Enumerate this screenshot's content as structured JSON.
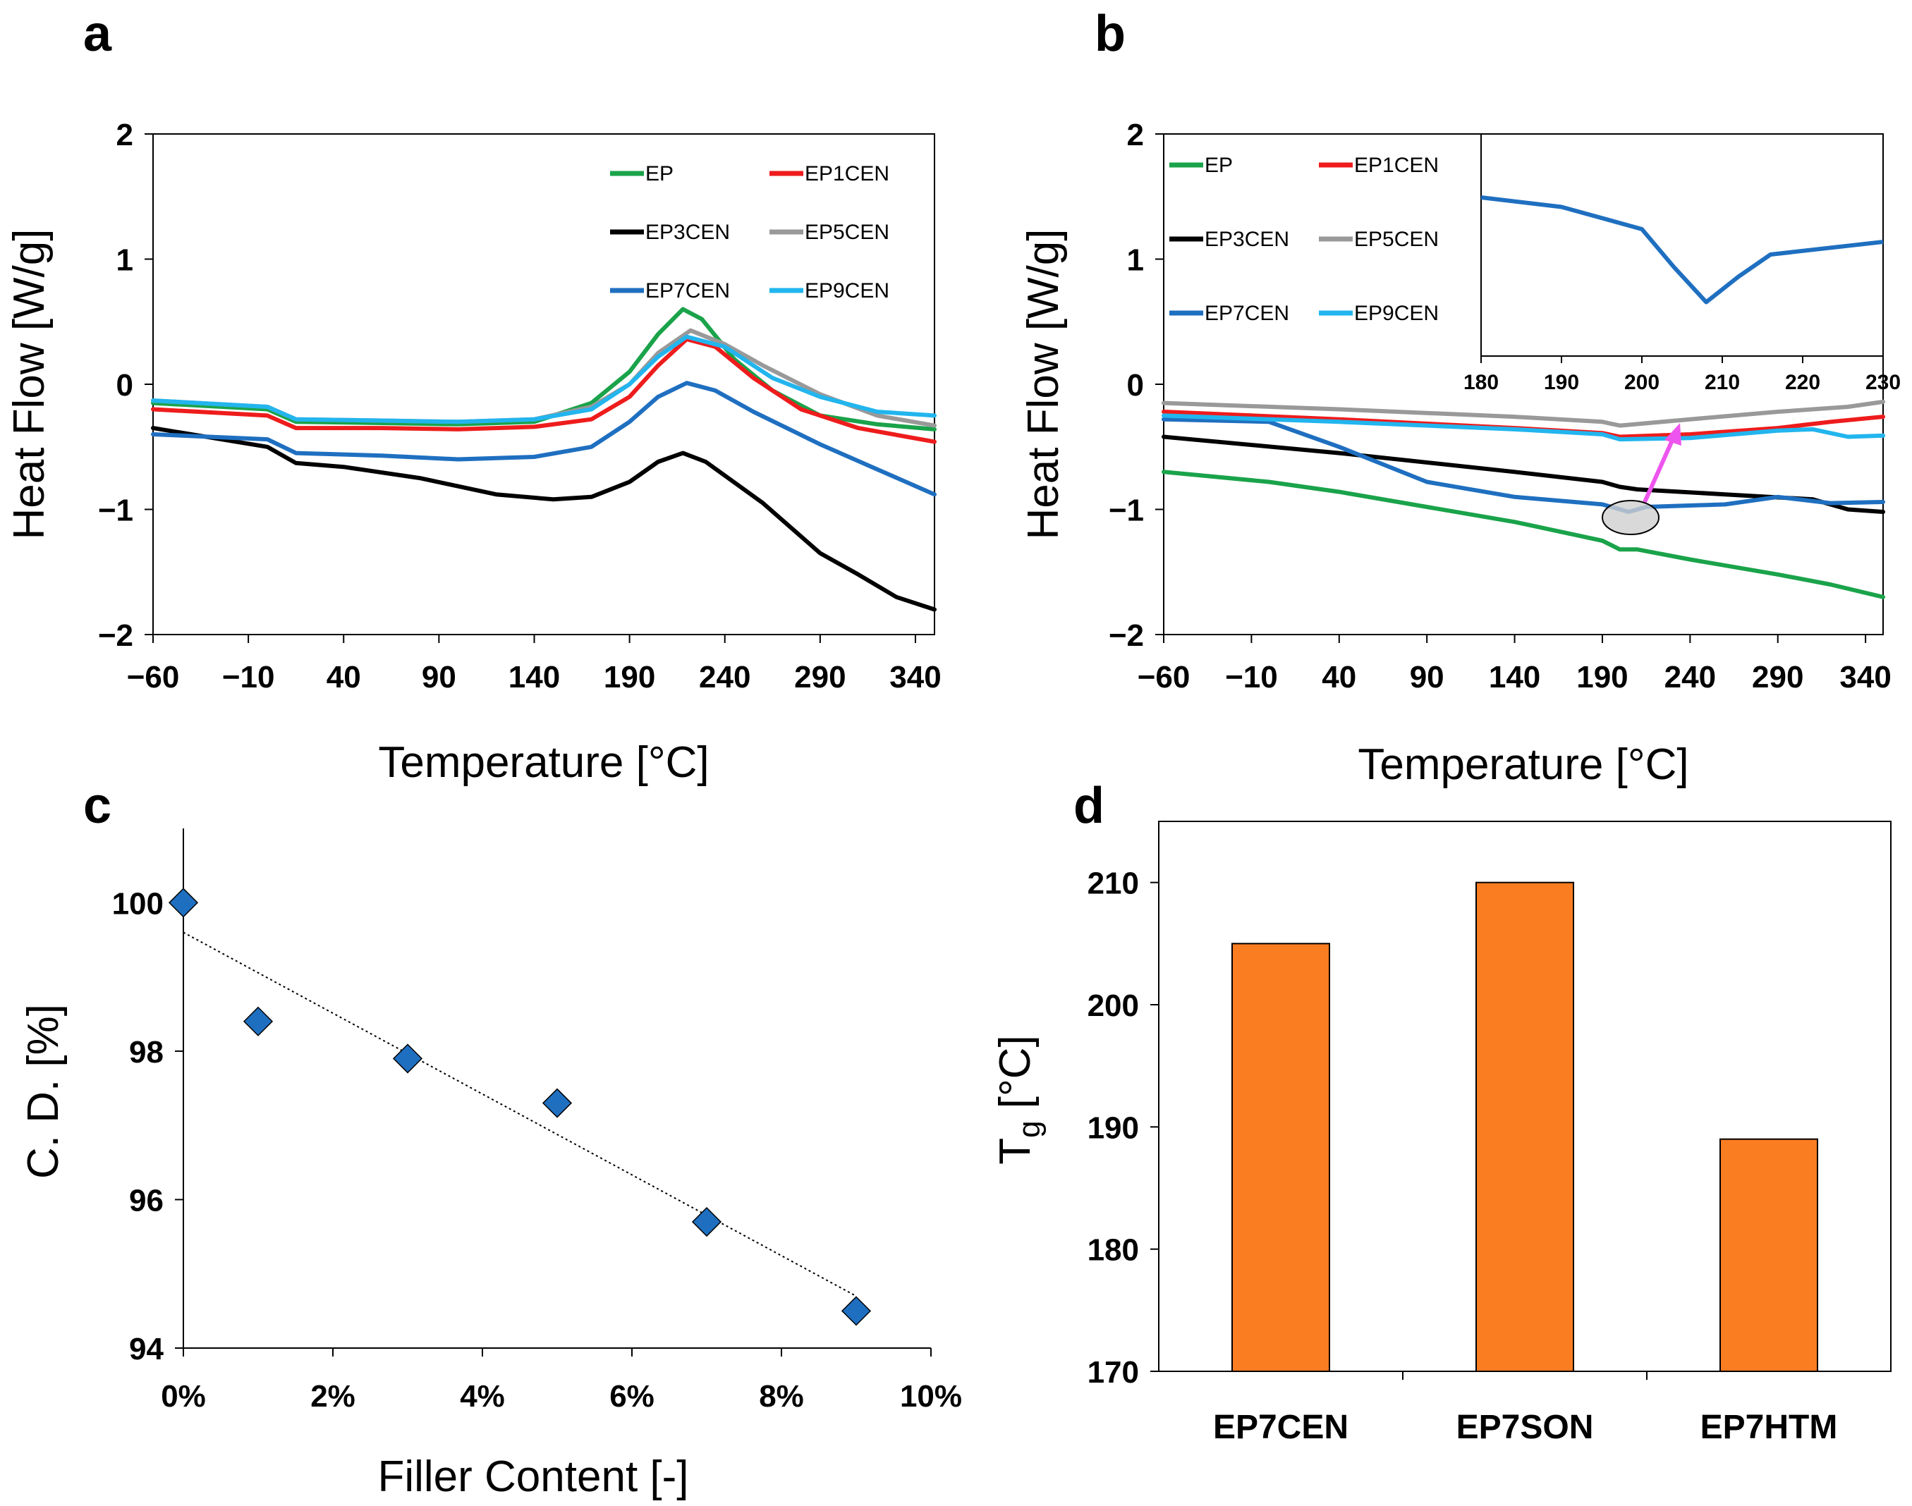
{
  "chart_data": [
    {
      "id": "a",
      "panel_label": "a",
      "type": "line",
      "xlabel": "Temperature [°C]",
      "ylabel": "Heat Flow [W/g]",
      "xlim": [
        -60,
        350
      ],
      "ylim": [
        -2,
        2
      ],
      "xticks": [
        -60,
        -10,
        40,
        90,
        140,
        190,
        240,
        290,
        340
      ],
      "yticks": [
        -2,
        -1,
        0,
        1,
        2
      ],
      "legend_position": "top-right",
      "series": [
        {
          "name": "EP",
          "color": "#1aa34a",
          "points": [
            [
              -60,
              -0.15
            ],
            [
              0,
              -0.2
            ],
            [
              15,
              -0.3
            ],
            [
              60,
              -0.31
            ],
            [
              100,
              -0.32
            ],
            [
              140,
              -0.3
            ],
            [
              170,
              -0.15
            ],
            [
              190,
              0.1
            ],
            [
              205,
              0.4
            ],
            [
              218,
              0.6
            ],
            [
              228,
              0.52
            ],
            [
              245,
              0.2
            ],
            [
              265,
              -0.05
            ],
            [
              290,
              -0.25
            ],
            [
              320,
              -0.32
            ],
            [
              350,
              -0.36
            ]
          ]
        },
        {
          "name": "EP1CEN",
          "color": "#ee1c1c",
          "points": [
            [
              -60,
              -0.2
            ],
            [
              0,
              -0.25
            ],
            [
              15,
              -0.35
            ],
            [
              60,
              -0.35
            ],
            [
              100,
              -0.36
            ],
            [
              140,
              -0.34
            ],
            [
              170,
              -0.28
            ],
            [
              190,
              -0.1
            ],
            [
              205,
              0.15
            ],
            [
              220,
              0.36
            ],
            [
              235,
              0.3
            ],
            [
              255,
              0.05
            ],
            [
              280,
              -0.2
            ],
            [
              310,
              -0.35
            ],
            [
              350,
              -0.46
            ]
          ]
        },
        {
          "name": "EP3CEN",
          "color": "#000000",
          "points": [
            [
              -60,
              -0.35
            ],
            [
              0,
              -0.5
            ],
            [
              15,
              -0.63
            ],
            [
              40,
              -0.66
            ],
            [
              80,
              -0.75
            ],
            [
              120,
              -0.88
            ],
            [
              150,
              -0.92
            ],
            [
              170,
              -0.9
            ],
            [
              190,
              -0.78
            ],
            [
              205,
              -0.62
            ],
            [
              218,
              -0.55
            ],
            [
              230,
              -0.62
            ],
            [
              260,
              -0.95
            ],
            [
              290,
              -1.35
            ],
            [
              310,
              -1.52
            ],
            [
              330,
              -1.7
            ],
            [
              350,
              -1.8
            ]
          ]
        },
        {
          "name": "EP5CEN",
          "color": "#999999",
          "points": [
            [
              -60,
              -0.13
            ],
            [
              0,
              -0.18
            ],
            [
              15,
              -0.28
            ],
            [
              60,
              -0.29
            ],
            [
              100,
              -0.3
            ],
            [
              140,
              -0.28
            ],
            [
              170,
              -0.18
            ],
            [
              190,
              0.0
            ],
            [
              205,
              0.25
            ],
            [
              222,
              0.43
            ],
            [
              240,
              0.32
            ],
            [
              260,
              0.15
            ],
            [
              290,
              -0.08
            ],
            [
              320,
              -0.25
            ],
            [
              350,
              -0.33
            ]
          ]
        },
        {
          "name": "EP7CEN",
          "color": "#1f6fc0",
          "points": [
            [
              -60,
              -0.4
            ],
            [
              0,
              -0.44
            ],
            [
              15,
              -0.55
            ],
            [
              60,
              -0.57
            ],
            [
              100,
              -0.6
            ],
            [
              140,
              -0.58
            ],
            [
              170,
              -0.5
            ],
            [
              190,
              -0.3
            ],
            [
              205,
              -0.1
            ],
            [
              220,
              0.01
            ],
            [
              235,
              -0.05
            ],
            [
              255,
              -0.22
            ],
            [
              290,
              -0.48
            ],
            [
              320,
              -0.68
            ],
            [
              350,
              -0.88
            ]
          ]
        },
        {
          "name": "EP9CEN",
          "color": "#22b5ee",
          "points": [
            [
              -60,
              -0.13
            ],
            [
              0,
              -0.18
            ],
            [
              15,
              -0.28
            ],
            [
              60,
              -0.29
            ],
            [
              100,
              -0.3
            ],
            [
              140,
              -0.28
            ],
            [
              170,
              -0.2
            ],
            [
              190,
              0.0
            ],
            [
              205,
              0.22
            ],
            [
              220,
              0.38
            ],
            [
              240,
              0.3
            ],
            [
              265,
              0.05
            ],
            [
              290,
              -0.1
            ],
            [
              320,
              -0.22
            ],
            [
              350,
              -0.25
            ]
          ]
        }
      ]
    },
    {
      "id": "b",
      "panel_label": "b",
      "type": "line",
      "xlabel": "Temperature [°C]",
      "ylabel": "Heat Flow [W/g]",
      "xlim": [
        -60,
        350
      ],
      "ylim": [
        -2,
        2
      ],
      "xticks": [
        -60,
        -10,
        40,
        90,
        140,
        190,
        240,
        290,
        340
      ],
      "yticks": [
        -2,
        -1,
        0,
        1,
        2
      ],
      "legend_position": "top-left",
      "series": [
        {
          "name": "EP",
          "color": "#1aa34a",
          "points": [
            [
              -60,
              -0.7
            ],
            [
              0,
              -0.78
            ],
            [
              40,
              -0.86
            ],
            [
              90,
              -0.98
            ],
            [
              140,
              -1.1
            ],
            [
              190,
              -1.25
            ],
            [
              200,
              -1.32
            ],
            [
              210,
              -1.32
            ],
            [
              240,
              -1.4
            ],
            [
              290,
              -1.52
            ],
            [
              320,
              -1.6
            ],
            [
              350,
              -1.7
            ]
          ]
        },
        {
          "name": "EP1CEN",
          "color": "#ee1c1c",
          "points": [
            [
              -60,
              -0.22
            ],
            [
              40,
              -0.28
            ],
            [
              140,
              -0.35
            ],
            [
              190,
              -0.39
            ],
            [
              200,
              -0.42
            ],
            [
              240,
              -0.4
            ],
            [
              290,
              -0.35
            ],
            [
              320,
              -0.3
            ],
            [
              350,
              -0.26
            ]
          ]
        },
        {
          "name": "EP3CEN",
          "color": "#000000",
          "points": [
            [
              -60,
              -0.42
            ],
            [
              40,
              -0.55
            ],
            [
              140,
              -0.7
            ],
            [
              190,
              -0.78
            ],
            [
              200,
              -0.82
            ],
            [
              210,
              -0.84
            ],
            [
              260,
              -0.88
            ],
            [
              310,
              -0.92
            ],
            [
              330,
              -1.0
            ],
            [
              350,
              -1.02
            ]
          ]
        },
        {
          "name": "EP5CEN",
          "color": "#999999",
          "points": [
            [
              -60,
              -0.15
            ],
            [
              40,
              -0.2
            ],
            [
              140,
              -0.26
            ],
            [
              190,
              -0.3
            ],
            [
              200,
              -0.33
            ],
            [
              240,
              -0.28
            ],
            [
              290,
              -0.22
            ],
            [
              330,
              -0.18
            ],
            [
              350,
              -0.14
            ]
          ]
        },
        {
          "name": "EP7CEN",
          "color": "#1f6fc0",
          "points": [
            [
              -60,
              -0.28
            ],
            [
              0,
              -0.3
            ],
            [
              40,
              -0.5
            ],
            [
              90,
              -0.78
            ],
            [
              140,
              -0.9
            ],
            [
              190,
              -0.96
            ],
            [
              205,
              -1.02
            ],
            [
              215,
              -0.98
            ],
            [
              260,
              -0.96
            ],
            [
              290,
              -0.9
            ],
            [
              320,
              -0.95
            ],
            [
              350,
              -0.94
            ]
          ]
        },
        {
          "name": "EP9CEN",
          "color": "#22b5ee",
          "points": [
            [
              -60,
              -0.25
            ],
            [
              40,
              -0.3
            ],
            [
              140,
              -0.36
            ],
            [
              190,
              -0.4
            ],
            [
              200,
              -0.44
            ],
            [
              240,
              -0.43
            ],
            [
              290,
              -0.37
            ],
            [
              310,
              -0.36
            ],
            [
              330,
              -0.42
            ],
            [
              350,
              -0.41
            ]
          ]
        }
      ],
      "inset": {
        "xlim": [
          180,
          230
        ],
        "xticks": [
          180,
          190,
          200,
          210,
          220,
          230
        ],
        "series": {
          "name": "EP7CEN",
          "color": "#1f6fc0",
          "points": [
            [
              180,
              1.3
            ],
            [
              190,
              1.27
            ],
            [
              200,
              1.2
            ],
            [
              204,
              1.08
            ],
            [
              208,
              0.97
            ],
            [
              212,
              1.05
            ],
            [
              216,
              1.12
            ],
            [
              230,
              1.16
            ]
          ]
        }
      }
    },
    {
      "id": "c",
      "panel_label": "c",
      "type": "scatter",
      "xlabel": "Filler Content [-]",
      "ylabel": "C. D. [%]",
      "xlim": [
        0,
        10
      ],
      "ylim": [
        94,
        101
      ],
      "xticks": [
        "0%",
        "2%",
        "4%",
        "6%",
        "8%",
        "10%"
      ],
      "yticks": [
        94,
        96,
        98,
        100
      ],
      "marker_color": "#1f6fc0",
      "points": [
        [
          0,
          100
        ],
        [
          1,
          98.4
        ],
        [
          3,
          97.9
        ],
        [
          5,
          97.3
        ],
        [
          7,
          95.7
        ],
        [
          9,
          94.5
        ]
      ],
      "trendline": [
        [
          0,
          99.6
        ],
        [
          9,
          94.7
        ]
      ]
    },
    {
      "id": "d",
      "panel_label": "d",
      "type": "bar",
      "xlabel": "",
      "ylabel": "T",
      "ylabel_sub": "g",
      "ylabel_suffix": " [°C]",
      "ylim": [
        170,
        215
      ],
      "yticks": [
        170,
        180,
        190,
        200,
        210
      ],
      "bar_color": "#fb7d22",
      "categories": [
        "EP7CEN",
        "EP7SON",
        "EP7HTM"
      ],
      "values": [
        205,
        210,
        189
      ]
    }
  ]
}
